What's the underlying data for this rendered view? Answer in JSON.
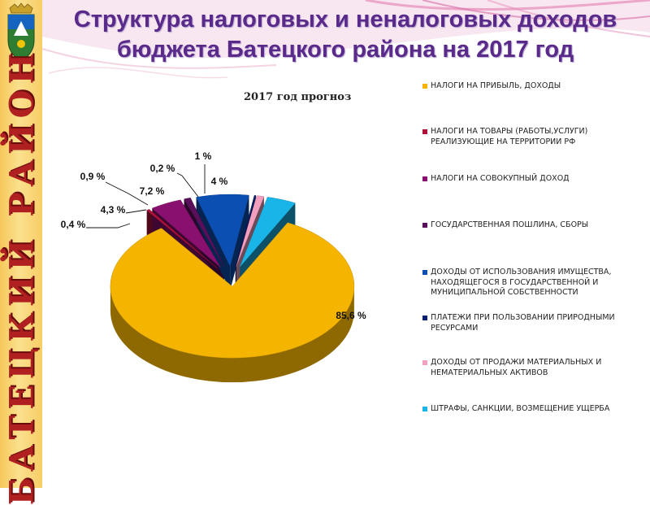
{
  "slide": {
    "title_line1": "Структура налоговых и неналоговых доходов",
    "title_line2": "бюджета Батецкого района на 2017 год",
    "side_text": "БАТЕЦКИЙ РАЙОН",
    "colors": {
      "title": "#5a2a8a",
      "side_text": "#b02020",
      "sidebar": "#f6c85a",
      "decor": "#e68ab8"
    }
  },
  "chart_data": {
    "type": "pie",
    "title": "2017 год прогноз",
    "legend_position": "right",
    "label_unit": "%",
    "slices": [
      {
        "name": "НАЛОГИ НА ПРИБЫЛЬ, ДОХОДЫ",
        "value": 85.6,
        "label": "85,6 %",
        "color": "#f5b400"
      },
      {
        "name": "НАЛОГИ НА ТОВАРЫ (РАБОТЫ,УСЛУГИ) РЕАЛИЗУЮЩИЕ НА ТЕРРИТОРИИ РФ",
        "value": 0.4,
        "label": "0,4 %",
        "color": "#b0103a"
      },
      {
        "name": "НАЛОГИ НА СОВОКУПНЫЙ ДОХОД",
        "value": 4.3,
        "label": "4,3 %",
        "color": "#8a1070"
      },
      {
        "name": "ГОСУДАРСТВЕННАЯ ПОШЛИНА, СБОРЫ",
        "value": 0.9,
        "label": "0,9 %",
        "color": "#5a0f5a"
      },
      {
        "name": "ДОХОДЫ ОТ ИСПОЛЬЗОВАНИЯ ИМУЩЕСТВА, НАХОДЯЩЕГОСЯ В ГОСУДАРСТВЕННОЙ И МУНИЦИПАЛЬНОЙ СОБСТВЕННОСТИ",
        "value": 7.2,
        "label": "7,2 %",
        "color": "#0b4fb3"
      },
      {
        "name": "ПЛАТЕЖИ ПРИ ПОЛЬЗОВАНИИ ПРИРОДНЫМИ РЕСУРСАМИ",
        "value": 0.2,
        "label": "0,2 %",
        "color": "#0a1f6e"
      },
      {
        "name": "ДОХОДЫ ОТ ПРОДАЖИ МАТЕРИАЛЬНЫХ И НЕМАТЕРИАЛЬНЫХ АКТИВОВ",
        "value": 1,
        "label": "1 %",
        "color": "#f3a0c0"
      },
      {
        "name": "ШТРАФЫ, САНКЦИИ, ВОЗМЕЩЕНИЕ УЩЕРБА",
        "value": 4,
        "label": "4 %",
        "color": "#1ab5e8"
      }
    ]
  }
}
